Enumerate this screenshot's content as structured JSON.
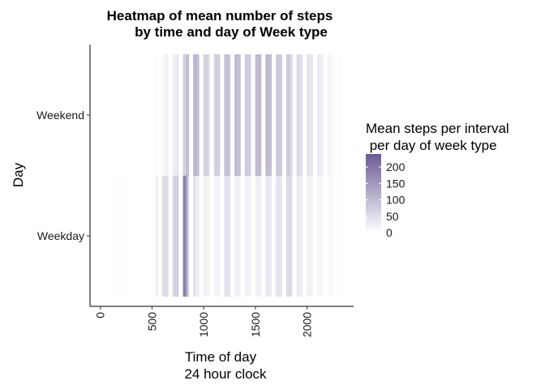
{
  "chart_data": {
    "type": "heatmap",
    "title_lines": [
      "Heatmap of mean number of steps",
      "by time and day of Week type"
    ],
    "xlabel_lines": [
      "Time of day",
      "24 hour clock"
    ],
    "ylabel": "Day",
    "x_ticks": [
      0,
      500,
      1000,
      1500,
      2000
    ],
    "x_tick_labels": [
      "0",
      "500",
      "1000",
      "1500",
      "2000"
    ],
    "xlim": [
      -100,
      2450
    ],
    "y_categories": [
      "Weekday",
      "Weekend"
    ],
    "legend": {
      "title_lines": [
        "Mean steps per interval",
        " per day of week type"
      ],
      "ticks": [
        0,
        50,
        100,
        150,
        200
      ],
      "tick_labels": [
        "0",
        "50",
        "100",
        "150",
        "200"
      ],
      "range": [
        0,
        240
      ],
      "color_low": "#ffffff",
      "color_high": "#6a5a94"
    },
    "colors": {
      "axis": "#000000",
      "tick": "#333333"
    },
    "hour_bins": [
      0,
      100,
      200,
      300,
      400,
      500,
      600,
      700,
      800,
      900,
      1000,
      1100,
      1200,
      1300,
      1400,
      1500,
      1600,
      1700,
      1800,
      1900,
      2000,
      2100,
      2200,
      2300
    ],
    "series": [
      {
        "name": "Weekday",
        "values": [
          [
            3,
            2,
            4,
            1,
            3,
            2,
            3,
            1,
            2,
            3,
            2,
            1
          ],
          [
            1,
            2,
            1,
            1,
            1,
            0,
            1,
            1,
            2,
            0,
            1,
            1
          ],
          [
            1,
            0,
            1,
            0,
            2,
            0,
            1,
            0,
            1,
            0,
            0,
            0
          ],
          [
            0,
            1,
            0,
            0,
            0,
            1,
            0,
            0,
            0,
            0,
            1,
            0
          ],
          [
            0,
            0,
            0,
            1,
            0,
            0,
            1,
            0,
            0,
            0,
            0,
            0
          ],
          [
            1,
            3,
            5,
            4,
            3,
            6,
            2,
            4,
            10,
            28,
            40,
            45
          ],
          [
            50,
            58,
            45,
            70,
            62,
            55,
            48,
            66,
            52,
            60,
            58,
            68
          ],
          [
            72,
            55,
            68,
            80,
            60,
            74,
            85,
            66,
            78,
            90,
            70,
            84
          ],
          [
            160,
            185,
            200,
            230,
            205,
            190,
            175,
            155,
            120,
            100,
            85,
            70
          ],
          [
            60,
            48,
            55,
            42,
            38,
            45,
            35,
            40,
            30,
            36,
            28,
            33
          ],
          [
            20,
            28,
            22,
            15,
            30,
            18,
            25,
            12,
            20,
            16,
            22,
            18
          ],
          [
            15,
            22,
            10,
            18,
            25,
            12,
            20,
            30,
            14,
            22,
            18,
            26
          ],
          [
            40,
            55,
            48,
            62,
            35,
            50,
            58,
            42,
            52,
            38,
            46,
            55
          ],
          [
            30,
            22,
            28,
            35,
            18,
            26,
            32,
            20,
            25,
            30,
            15,
            22
          ],
          [
            20,
            28,
            15,
            22,
            30,
            18,
            25,
            12,
            28,
            20,
            24,
            16
          ],
          [
            22,
            30,
            18,
            26,
            35,
            20,
            28,
            32,
            24,
            18,
            30,
            26
          ],
          [
            35,
            42,
            30,
            38,
            45,
            28,
            40,
            34,
            38,
            30,
            36,
            42
          ],
          [
            45,
            38,
            52,
            40,
            35,
            48,
            42,
            55,
            38,
            46,
            40,
            50
          ],
          [
            55,
            70,
            62,
            48,
            66,
            58,
            72,
            60,
            52,
            64,
            50,
            58
          ],
          [
            40,
            35,
            30,
            42,
            28,
            36,
            32,
            38,
            25,
            30,
            34,
            28
          ],
          [
            22,
            30,
            26,
            18,
            24,
            20,
            28,
            16,
            22,
            18,
            25,
            20
          ],
          [
            12,
            18,
            10,
            15,
            20,
            14,
            8,
            16,
            12,
            10,
            14,
            9
          ],
          [
            8,
            12,
            6,
            10,
            5,
            9,
            7,
            11,
            4,
            8,
            6,
            5
          ],
          [
            3,
            5,
            2,
            4,
            3,
            2,
            5,
            1,
            3,
            2,
            1,
            2
          ]
        ]
      },
      {
        "name": "Weekend",
        "values": [
          [
            1,
            0,
            2,
            0,
            1,
            0,
            1,
            0,
            2,
            0,
            1,
            0
          ],
          [
            0,
            1,
            0,
            3,
            0,
            1,
            0,
            1,
            0,
            0,
            1,
            0
          ],
          [
            0,
            0,
            1,
            0,
            0,
            0,
            0,
            1,
            0,
            0,
            0,
            0
          ],
          [
            0,
            0,
            0,
            0,
            1,
            0,
            0,
            0,
            0,
            1,
            0,
            0
          ],
          [
            0,
            0,
            0,
            0,
            0,
            0,
            0,
            0,
            0,
            0,
            1,
            0
          ],
          [
            0,
            1,
            0,
            2,
            1,
            0,
            3,
            2,
            4,
            6,
            3,
            8
          ],
          [
            10,
            15,
            8,
            20,
            12,
            18,
            22,
            15,
            25,
            20,
            28,
            24
          ],
          [
            25,
            30,
            22,
            35,
            28,
            32,
            40,
            30,
            38,
            45,
            35,
            42
          ],
          [
            55,
            75,
            90,
            80,
            70,
            85,
            95,
            110,
            100,
            120,
            105,
            115
          ],
          [
            120,
            130,
            110,
            140,
            100,
            125,
            135,
            115,
            95,
            105,
            85,
            100
          ],
          [
            75,
            90,
            60,
            80,
            70,
            95,
            65,
            88,
            72,
            55,
            78,
            62
          ],
          [
            55,
            80,
            65,
            95,
            70,
            105,
            85,
            60,
            90,
            75,
            100,
            80
          ],
          [
            85,
            120,
            95,
            110,
            75,
            105,
            125,
            90,
            115,
            80,
            100,
            95
          ],
          [
            100,
            135,
            110,
            120,
            90,
            130,
            105,
            115,
            95,
            125,
            85,
            110
          ],
          [
            80,
            95,
            70,
            110,
            85,
            90,
            75,
            100,
            65,
            88,
            95,
            72
          ],
          [
            95,
            115,
            100,
            125,
            110,
            130,
            105,
            120,
            115,
            110,
            125,
            100
          ],
          [
            105,
            120,
            110,
            130,
            100,
            125,
            115,
            108,
            95,
            118,
            100,
            112
          ],
          [
            75,
            95,
            80,
            110,
            90,
            70,
            100,
            85,
            92,
            78,
            105,
            88
          ],
          [
            65,
            85,
            70,
            95,
            110,
            60,
            80,
            75,
            88,
            70,
            55,
            72
          ],
          [
            55,
            70,
            62,
            50,
            75,
            58,
            68,
            52,
            45,
            60,
            50,
            55
          ],
          [
            45,
            60,
            50,
            40,
            55,
            35,
            50,
            42,
            48,
            38,
            45,
            40
          ],
          [
            32,
            40,
            28,
            35,
            45,
            30,
            38,
            25,
            35,
            30,
            28,
            32
          ],
          [
            20,
            15,
            22,
            12,
            18,
            10,
            16,
            8,
            14,
            10,
            12,
            6
          ],
          [
            5,
            8,
            4,
            6,
            3,
            5,
            2,
            4,
            3,
            2,
            3,
            1
          ]
        ]
      }
    ]
  }
}
